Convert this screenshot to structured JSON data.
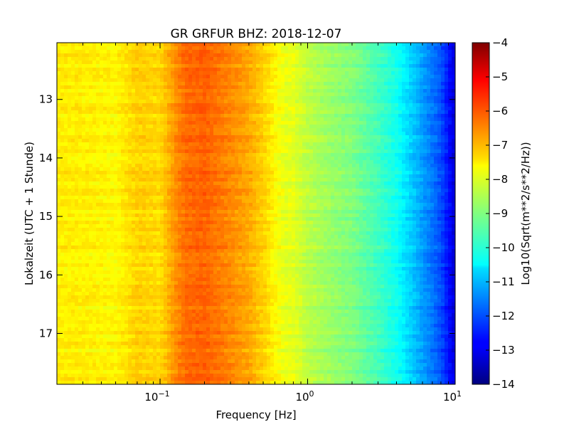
{
  "chart_data": {
    "type": "heatmap",
    "title": "GR GRFUR BHZ: 2018-12-07",
    "xlabel": "Frequency [Hz]",
    "ylabel": "Lokalzeit (UTC + 1 Stunde)",
    "xscale": "log",
    "xlim": [
      0.02,
      10
    ],
    "ylim": [
      12.03,
      17.87
    ],
    "y_inverted": true,
    "x_ticks": [
      {
        "value": 0.1,
        "base": "10",
        "exp": "−1"
      },
      {
        "value": 1,
        "base": "10",
        "exp": "0"
      },
      {
        "value": 10,
        "base": "10",
        "exp": "1"
      }
    ],
    "y_ticks": [
      "13",
      "14",
      "15",
      "16",
      "17"
    ],
    "colormap": "jet",
    "colorbar": {
      "label": "Log10(Sqrt(m**2/s**2/Hz))",
      "range": [
        -14,
        -4
      ],
      "ticks": [
        "−4",
        "−5",
        "−6",
        "−7",
        "−8",
        "−9",
        "−10",
        "−11",
        "−12",
        "−13",
        "−14"
      ]
    },
    "spectrum_profile": {
      "frequency_hz": [
        0.02,
        0.03,
        0.05,
        0.07,
        0.1,
        0.13,
        0.15,
        0.2,
        0.3,
        0.4,
        0.5,
        0.6,
        0.7,
        0.8,
        1.0,
        1.5,
        2.0,
        3.0,
        4.0,
        5.0,
        6.0,
        7.0,
        8.0,
        9.0,
        10.0
      ],
      "value": [
        -7.6,
        -7.6,
        -7.7,
        -7.3,
        -7.4,
        -6.6,
        -6.3,
        -6.2,
        -6.6,
        -6.9,
        -7.3,
        -7.7,
        -8.0,
        -8.0,
        -8.4,
        -8.8,
        -9.0,
        -9.6,
        -10.1,
        -10.7,
        -11.2,
        -11.6,
        -12.0,
        -12.6,
        -13.2
      ]
    }
  }
}
